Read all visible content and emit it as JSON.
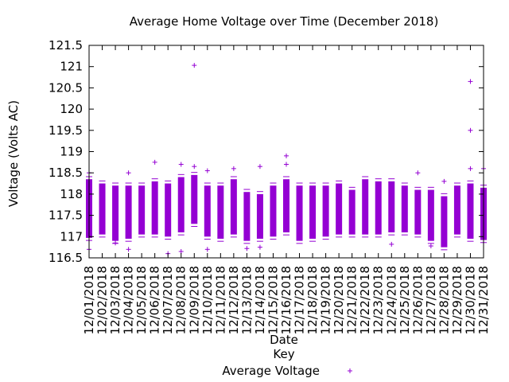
{
  "chart_data": {
    "type": "scatter",
    "title": "Average Home Voltage over Time (December 2018)",
    "xlabel": "Date",
    "ylabel": "Voltage (Volts AC)",
    "legend_title": "Key",
    "legend_position": "bottom-center",
    "marker": "+",
    "ylim": [
      116.5,
      121.5
    ],
    "yticks": [
      "116.5",
      "117",
      "117.5",
      "118",
      "118.5",
      "119",
      "119.5",
      "120",
      "120.5",
      "121",
      "121.5"
    ],
    "grid": false,
    "categories": [
      "12/01/2018",
      "12/02/2018",
      "12/03/2018",
      "12/04/2018",
      "12/05/2018",
      "12/06/2018",
      "12/07/2018",
      "12/08/2018",
      "12/09/2018",
      "12/10/2018",
      "12/11/2018",
      "12/12/2018",
      "12/13/2018",
      "12/14/2018",
      "12/15/2018",
      "12/16/2018",
      "12/17/2018",
      "12/18/2018",
      "12/19/2018",
      "12/20/2018",
      "12/21/2018",
      "12/22/2018",
      "12/23/2018",
      "12/24/2018",
      "12/25/2018",
      "12/26/2018",
      "12/27/2018",
      "12/28/2018",
      "12/29/2018",
      "12/30/2018",
      "12/31/2018"
    ],
    "series": [
      {
        "name": "Average Voltage",
        "color": "#9400d3",
        "daily_range": [
          [
            116.97,
            118.35
          ],
          [
            117.05,
            118.25
          ],
          [
            116.9,
            118.2
          ],
          [
            116.95,
            118.2
          ],
          [
            117.05,
            118.2
          ],
          [
            117.05,
            118.3
          ],
          [
            117.0,
            118.25
          ],
          [
            117.1,
            118.4
          ],
          [
            117.3,
            118.45
          ],
          [
            117.0,
            118.2
          ],
          [
            116.95,
            118.2
          ],
          [
            117.05,
            118.35
          ],
          [
            116.9,
            118.05
          ],
          [
            116.95,
            118.0
          ],
          [
            117.0,
            118.2
          ],
          [
            117.1,
            118.35
          ],
          [
            116.9,
            118.2
          ],
          [
            116.95,
            118.2
          ],
          [
            117.0,
            118.2
          ],
          [
            117.05,
            118.25
          ],
          [
            117.05,
            118.1
          ],
          [
            117.05,
            118.35
          ],
          [
            117.05,
            118.3
          ],
          [
            117.1,
            118.3
          ],
          [
            117.1,
            118.2
          ],
          [
            117.05,
            118.1
          ],
          [
            116.9,
            118.1
          ],
          [
            116.75,
            117.95
          ],
          [
            117.05,
            118.2
          ],
          [
            116.95,
            118.25
          ],
          [
            116.92,
            118.15
          ]
        ],
        "outliers": [
          {
            "x": "12/01/2018",
            "y": 116.7
          },
          {
            "x": "12/01/2018",
            "y": 118.5
          },
          {
            "x": "12/03/2018",
            "y": 116.85
          },
          {
            "x": "12/04/2018",
            "y": 116.7
          },
          {
            "x": "12/04/2018",
            "y": 118.5
          },
          {
            "x": "12/06/2018",
            "y": 118.75
          },
          {
            "x": "12/07/2018",
            "y": 116.6
          },
          {
            "x": "12/08/2018",
            "y": 116.65
          },
          {
            "x": "12/08/2018",
            "y": 118.7
          },
          {
            "x": "12/09/2018",
            "y": 121.03
          },
          {
            "x": "12/09/2018",
            "y": 118.65
          },
          {
            "x": "12/10/2018",
            "y": 116.7
          },
          {
            "x": "12/10/2018",
            "y": 118.55
          },
          {
            "x": "12/12/2018",
            "y": 118.6
          },
          {
            "x": "12/13/2018",
            "y": 116.72
          },
          {
            "x": "12/14/2018",
            "y": 118.65
          },
          {
            "x": "12/14/2018",
            "y": 116.75
          },
          {
            "x": "12/16/2018",
            "y": 118.9
          },
          {
            "x": "12/16/2018",
            "y": 118.7
          },
          {
            "x": "12/24/2018",
            "y": 116.82
          },
          {
            "x": "12/26/2018",
            "y": 118.5
          },
          {
            "x": "12/27/2018",
            "y": 116.78
          },
          {
            "x": "12/28/2018",
            "y": 118.3
          },
          {
            "x": "12/30/2018",
            "y": 120.65
          },
          {
            "x": "12/30/2018",
            "y": 119.5
          },
          {
            "x": "12/30/2018",
            "y": 118.6
          },
          {
            "x": "12/31/2018",
            "y": 118.6
          }
        ]
      }
    ]
  }
}
